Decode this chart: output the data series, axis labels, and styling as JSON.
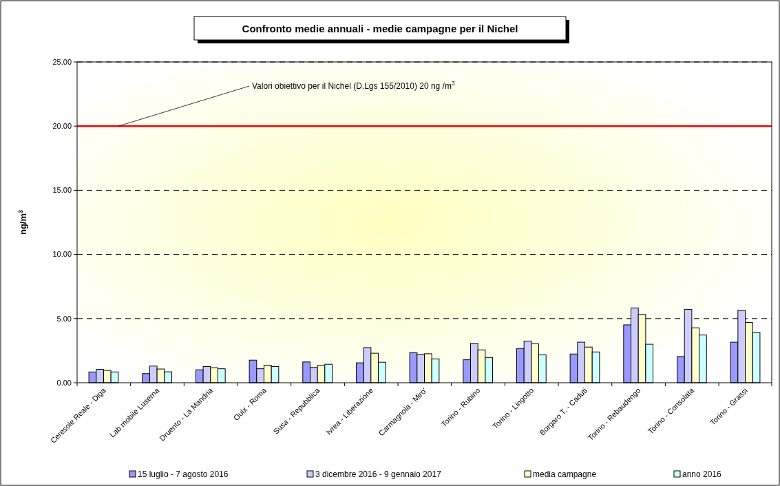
{
  "chart_data": {
    "type": "bar",
    "title": "Confronto medie annuali - medie campagne per il Nichel",
    "ylabel": "ng/m$^{3}$",
    "categories": [
      "Ceresole Reale - Diga",
      "Lab mobile Luserna",
      "Druento - La Mandria",
      "Oulx - Roma",
      "Susa - Repubblica",
      "Ivrea - Liberazione",
      "Carmagnola - Miro'",
      "Torino - Rubino",
      "Torino - Lingotto",
      "Borgaro T. - Caduti",
      "Torino - Rebaudengo",
      "Torino - Consolata",
      "Torino - Grassi"
    ],
    "series": [
      {
        "name": "15 luglio - 7 agosto 2016",
        "color": "#9999ff",
        "values": [
          0.84,
          0.71,
          1.01,
          1.76,
          1.62,
          1.55,
          2.35,
          1.79,
          2.67,
          2.24,
          4.51,
          2.04,
          3.16
        ]
      },
      {
        "name": "3 dicembre 2016 - 9 gennaio 2017",
        "color": "#ccccff",
        "values": [
          1.05,
          1.3,
          1.26,
          1.09,
          1.19,
          2.74,
          2.22,
          3.07,
          3.25,
          3.16,
          5.83,
          5.72,
          5.65
        ]
      },
      {
        "name": "media campagne",
        "color": "#ffffcc",
        "values": [
          0.96,
          1.07,
          1.17,
          1.37,
          1.35,
          2.3,
          2.26,
          2.56,
          3.03,
          2.78,
          5.32,
          4.28,
          4.69
        ]
      },
      {
        "name": "anno 2016",
        "color": "#ccffff",
        "values": [
          0.84,
          0.85,
          1.09,
          1.26,
          1.44,
          1.6,
          1.86,
          1.97,
          2.17,
          2.4,
          3.0,
          3.72,
          3.92
        ]
      }
    ],
    "ylim": [
      0,
      25
    ],
    "yticks": [
      {
        "value": 0,
        "label": "0.00"
      },
      {
        "value": 5,
        "label": "5.00"
      },
      {
        "value": 10,
        "label": "10.00"
      },
      {
        "value": 15,
        "label": "15.00"
      },
      {
        "value": 20,
        "label": "20.00"
      },
      {
        "value": 25,
        "label": "25.00"
      }
    ],
    "grid": "y",
    "legend": "bottom",
    "ref_lines": [
      {
        "axis": "y",
        "value": 20,
        "label": "Valori obiettivo per il Nichel (D.Lgs 155/2010) 20 ng /m$^{3}$",
        "color": "#ff0000",
        "line_style": "solid"
      }
    ]
  }
}
